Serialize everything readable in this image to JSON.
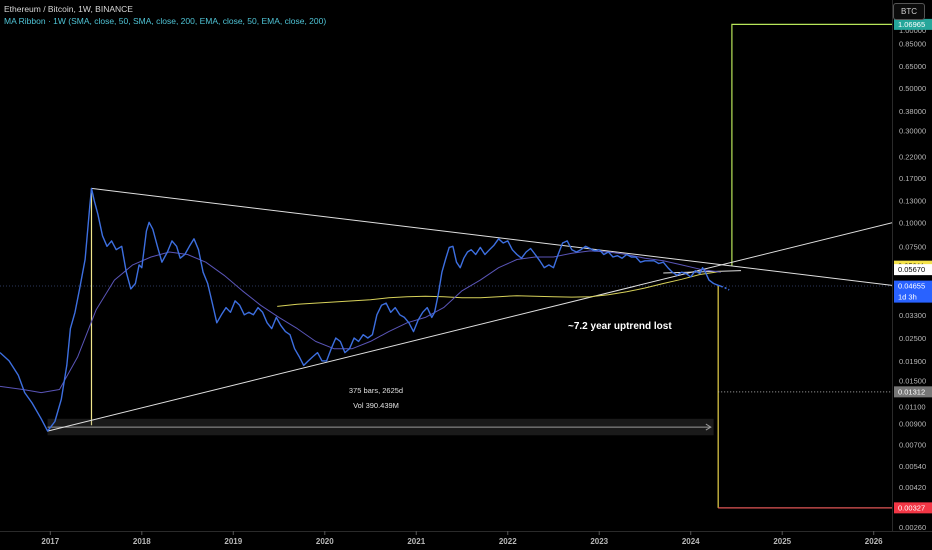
{
  "legend": {
    "line1": "Ethereum / Bitcoin, 1W, BINANCE",
    "line2": "MA Ribbon · 1W (SMA, close, 50, SMA, close, 200, EMA, close, 50, EMA, close, 200)"
  },
  "toolbar": {
    "currency_button": "BTC"
  },
  "colors": {
    "background": "#000000",
    "price_line": "#3d6fe0",
    "ma_purple": "#5a55b8",
    "ma_yellow": "#d8d25a",
    "trendline": "#e0e0e0",
    "green_box": "#b8e65a",
    "red_box": "#e8d24a",
    "tag_green": "#26a69a",
    "tag_yellow": "#f4e24a",
    "tag_blue": "#2962ff",
    "tag_red": "#f23645",
    "tag_gray": "#777777"
  },
  "annotations": {
    "uptrend_text": "~7.2 year uptrend lost",
    "range_bars": "375 bars, 2625d",
    "range_vol": "Vol 390.439M"
  },
  "chart_data": {
    "type": "line",
    "title": "Ethereum / Bitcoin, 1W, BINANCE",
    "y_scale": "log",
    "ylim": [
      0.0026,
      1.4
    ],
    "y_ticks": [
      "1.00000",
      "0.85000",
      "0.65000",
      "0.50000",
      "0.38000",
      "0.30000",
      "0.22000",
      "0.17000",
      "0.13000",
      "0.10000",
      "0.07500",
      "0.05800",
      "0.04500",
      "0.03300",
      "0.02500",
      "0.01900",
      "0.01500",
      "0.01100",
      "0.00900",
      "0.00700",
      "0.00540",
      "0.00420",
      "0.00330",
      "0.00260"
    ],
    "x_ticks": [
      "2017",
      "2018",
      "2019",
      "2020",
      "2021",
      "2022",
      "2023",
      "2024",
      "2025",
      "2026"
    ],
    "price_tags": [
      {
        "label": "1.06965",
        "value": 1.06965,
        "color": "#26a69a"
      },
      {
        "label": "0.05911",
        "value": 0.05911,
        "color": "#f4e24a"
      },
      {
        "label": "0.05670",
        "value": 0.0567,
        "color": "#ffffff"
      },
      {
        "label": "0.04655",
        "value": 0.04655,
        "color": "#2962ff",
        "sub": "1d 3h"
      },
      {
        "label": "0.01312",
        "value": 0.01312,
        "color": "#777777"
      },
      {
        "label": "0.00327",
        "value": 0.00327,
        "color": "#f23645"
      }
    ],
    "series": [
      {
        "name": "ETH/BTC",
        "points": [
          [
            2016.45,
            0.021
          ],
          [
            2016.55,
            0.019
          ],
          [
            2016.65,
            0.016
          ],
          [
            2016.72,
            0.013
          ],
          [
            2016.8,
            0.0115
          ],
          [
            2016.9,
            0.0095
          ],
          [
            2016.97,
            0.0082
          ],
          [
            2017.05,
            0.0092
          ],
          [
            2017.12,
            0.012
          ],
          [
            2017.18,
            0.018
          ],
          [
            2017.22,
            0.028
          ],
          [
            2017.27,
            0.034
          ],
          [
            2017.32,
            0.045
          ],
          [
            2017.38,
            0.064
          ],
          [
            2017.43,
            0.12
          ],
          [
            2017.45,
            0.15
          ],
          [
            2017.48,
            0.13
          ],
          [
            2017.52,
            0.11
          ],
          [
            2017.57,
            0.085
          ],
          [
            2017.62,
            0.075
          ],
          [
            2017.67,
            0.08
          ],
          [
            2017.72,
            0.072
          ],
          [
            2017.78,
            0.075
          ],
          [
            2017.83,
            0.055
          ],
          [
            2017.88,
            0.045
          ],
          [
            2017.93,
            0.048
          ],
          [
            2017.97,
            0.06
          ],
          [
            2018.0,
            0.058
          ],
          [
            2018.05,
            0.09
          ],
          [
            2018.08,
            0.1
          ],
          [
            2018.12,
            0.092
          ],
          [
            2018.17,
            0.075
          ],
          [
            2018.22,
            0.062
          ],
          [
            2018.28,
            0.07
          ],
          [
            2018.33,
            0.08
          ],
          [
            2018.38,
            0.075
          ],
          [
            2018.42,
            0.065
          ],
          [
            2018.47,
            0.068
          ],
          [
            2018.52,
            0.075
          ],
          [
            2018.57,
            0.082
          ],
          [
            2018.62,
            0.072
          ],
          [
            2018.67,
            0.055
          ],
          [
            2018.72,
            0.048
          ],
          [
            2018.77,
            0.038
          ],
          [
            2018.82,
            0.03
          ],
          [
            2018.87,
            0.033
          ],
          [
            2018.92,
            0.036
          ],
          [
            2018.97,
            0.034
          ],
          [
            2019.02,
            0.039
          ],
          [
            2019.07,
            0.037
          ],
          [
            2019.12,
            0.033
          ],
          [
            2019.17,
            0.034
          ],
          [
            2019.22,
            0.033
          ],
          [
            2019.27,
            0.036
          ],
          [
            2019.32,
            0.034
          ],
          [
            2019.37,
            0.03
          ],
          [
            2019.42,
            0.028
          ],
          [
            2019.47,
            0.032
          ],
          [
            2019.52,
            0.029
          ],
          [
            2019.57,
            0.027
          ],
          [
            2019.62,
            0.026
          ],
          [
            2019.67,
            0.022
          ],
          [
            2019.72,
            0.02
          ],
          [
            2019.77,
            0.018
          ],
          [
            2019.82,
            0.019
          ],
          [
            2019.87,
            0.02
          ],
          [
            2019.92,
            0.021
          ],
          [
            2019.97,
            0.019
          ],
          [
            2020.02,
            0.019
          ],
          [
            2020.07,
            0.022
          ],
          [
            2020.12,
            0.025
          ],
          [
            2020.17,
            0.024
          ],
          [
            2020.22,
            0.021
          ],
          [
            2020.27,
            0.022
          ],
          [
            2020.32,
            0.025
          ],
          [
            2020.37,
            0.024
          ],
          [
            2020.42,
            0.026
          ],
          [
            2020.47,
            0.025
          ],
          [
            2020.52,
            0.026
          ],
          [
            2020.57,
            0.033
          ],
          [
            2020.62,
            0.037
          ],
          [
            2020.67,
            0.038
          ],
          [
            2020.72,
            0.034
          ],
          [
            2020.77,
            0.036
          ],
          [
            2020.82,
            0.033
          ],
          [
            2020.87,
            0.032
          ],
          [
            2020.92,
            0.03
          ],
          [
            2020.97,
            0.027
          ],
          [
            2021.02,
            0.031
          ],
          [
            2021.07,
            0.034
          ],
          [
            2021.12,
            0.036
          ],
          [
            2021.17,
            0.032
          ],
          [
            2021.2,
            0.034
          ],
          [
            2021.24,
            0.042
          ],
          [
            2021.28,
            0.055
          ],
          [
            2021.32,
            0.064
          ],
          [
            2021.36,
            0.074
          ],
          [
            2021.4,
            0.075
          ],
          [
            2021.44,
            0.062
          ],
          [
            2021.48,
            0.058
          ],
          [
            2021.52,
            0.065
          ],
          [
            2021.56,
            0.07
          ],
          [
            2021.6,
            0.072
          ],
          [
            2021.65,
            0.068
          ],
          [
            2021.7,
            0.074
          ],
          [
            2021.75,
            0.068
          ],
          [
            2021.8,
            0.072
          ],
          [
            2021.85,
            0.076
          ],
          [
            2021.9,
            0.082
          ],
          [
            2021.95,
            0.078
          ],
          [
            2022.0,
            0.08
          ],
          [
            2022.05,
            0.072
          ],
          [
            2022.1,
            0.068
          ],
          [
            2022.15,
            0.065
          ],
          [
            2022.2,
            0.07
          ],
          [
            2022.25,
            0.073
          ],
          [
            2022.3,
            0.068
          ],
          [
            2022.35,
            0.063
          ],
          [
            2022.4,
            0.058
          ],
          [
            2022.45,
            0.06
          ],
          [
            2022.5,
            0.058
          ],
          [
            2022.55,
            0.068
          ],
          [
            2022.6,
            0.078
          ],
          [
            2022.65,
            0.08
          ],
          [
            2022.7,
            0.072
          ],
          [
            2022.75,
            0.07
          ],
          [
            2022.8,
            0.072
          ],
          [
            2022.85,
            0.075
          ],
          [
            2022.9,
            0.073
          ],
          [
            2022.95,
            0.071
          ],
          [
            2023.0,
            0.072
          ],
          [
            2023.05,
            0.068
          ],
          [
            2023.1,
            0.07
          ],
          [
            2023.15,
            0.066
          ],
          [
            2023.2,
            0.067
          ],
          [
            2023.25,
            0.065
          ],
          [
            2023.3,
            0.068
          ],
          [
            2023.35,
            0.066
          ],
          [
            2023.4,
            0.066
          ],
          [
            2023.45,
            0.062
          ],
          [
            2023.5,
            0.063
          ],
          [
            2023.55,
            0.063
          ],
          [
            2023.6,
            0.063
          ],
          [
            2023.65,
            0.061
          ],
          [
            2023.7,
            0.062
          ],
          [
            2023.75,
            0.058
          ],
          [
            2023.8,
            0.055
          ],
          [
            2023.85,
            0.053
          ],
          [
            2023.9,
            0.055
          ],
          [
            2023.95,
            0.054
          ],
          [
            2024.0,
            0.052
          ],
          [
            2024.05,
            0.056
          ],
          [
            2024.1,
            0.054
          ],
          [
            2024.13,
            0.058
          ],
          [
            2024.16,
            0.055
          ],
          [
            2024.2,
            0.05
          ],
          [
            2024.25,
            0.048
          ],
          [
            2024.3,
            0.047
          ],
          [
            2024.33,
            0.0465
          ]
        ]
      },
      {
        "name": "MA purple",
        "points": [
          [
            2016.45,
            0.014
          ],
          [
            2016.7,
            0.0135
          ],
          [
            2016.9,
            0.013
          ],
          [
            2017.1,
            0.0135
          ],
          [
            2017.3,
            0.02
          ],
          [
            2017.5,
            0.035
          ],
          [
            2017.7,
            0.05
          ],
          [
            2017.9,
            0.06
          ],
          [
            2018.1,
            0.066
          ],
          [
            2018.3,
            0.07
          ],
          [
            2018.5,
            0.068
          ],
          [
            2018.7,
            0.062
          ],
          [
            2018.9,
            0.053
          ],
          [
            2019.1,
            0.044
          ],
          [
            2019.3,
            0.037
          ],
          [
            2019.5,
            0.032
          ],
          [
            2019.7,
            0.028
          ],
          [
            2019.9,
            0.024
          ],
          [
            2020.1,
            0.022
          ],
          [
            2020.3,
            0.022
          ],
          [
            2020.5,
            0.024
          ],
          [
            2020.7,
            0.027
          ],
          [
            2020.9,
            0.03
          ],
          [
            2021.1,
            0.032
          ],
          [
            2021.3,
            0.036
          ],
          [
            2021.5,
            0.044
          ],
          [
            2021.7,
            0.05
          ],
          [
            2021.9,
            0.058
          ],
          [
            2022.1,
            0.064
          ],
          [
            2022.3,
            0.066
          ],
          [
            2022.5,
            0.066
          ],
          [
            2022.7,
            0.069
          ],
          [
            2022.9,
            0.071
          ],
          [
            2023.1,
            0.07
          ],
          [
            2023.3,
            0.068
          ],
          [
            2023.5,
            0.065
          ],
          [
            2023.7,
            0.063
          ],
          [
            2023.9,
            0.06
          ],
          [
            2024.1,
            0.057
          ],
          [
            2024.33,
            0.055
          ]
        ]
      },
      {
        "name": "MA yellow",
        "points": [
          [
            2019.48,
            0.0365
          ],
          [
            2019.7,
            0.0375
          ],
          [
            2019.9,
            0.038
          ],
          [
            2020.1,
            0.0385
          ],
          [
            2020.3,
            0.039
          ],
          [
            2020.5,
            0.0395
          ],
          [
            2020.7,
            0.0405
          ],
          [
            2020.9,
            0.041
          ],
          [
            2021.1,
            0.0412
          ],
          [
            2021.3,
            0.041
          ],
          [
            2021.5,
            0.0405
          ],
          [
            2021.7,
            0.0405
          ],
          [
            2021.9,
            0.041
          ],
          [
            2022.1,
            0.0415
          ],
          [
            2022.3,
            0.0412
          ],
          [
            2022.5,
            0.041
          ],
          [
            2022.7,
            0.0408
          ],
          [
            2022.9,
            0.041
          ],
          [
            2023.1,
            0.042
          ],
          [
            2023.3,
            0.0435
          ],
          [
            2023.5,
            0.0455
          ],
          [
            2023.7,
            0.048
          ],
          [
            2023.9,
            0.0505
          ],
          [
            2024.1,
            0.0535
          ],
          [
            2024.33,
            0.0555
          ]
        ]
      }
    ]
  }
}
